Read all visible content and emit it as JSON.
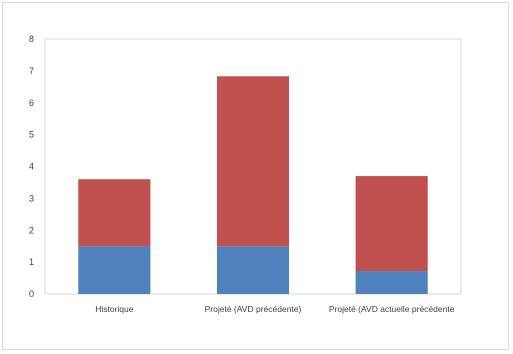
{
  "chart_data": {
    "type": "bar",
    "stacked": true,
    "categories": [
      "Historique",
      "Projeté (AVD précédente)",
      "Projeté (AVD actuelle précédente"
    ],
    "series": [
      {
        "color": "#4f81bd",
        "values": [
          1.5,
          1.5,
          0.72
        ]
      },
      {
        "color": "#c0504d",
        "values": [
          2.1,
          5.33,
          2.98
        ]
      }
    ],
    "ylim": [
      0,
      8
    ],
    "yticks": [
      0,
      1,
      2,
      3,
      4,
      5,
      6,
      7,
      8
    ],
    "grid": false,
    "legend": "none"
  }
}
